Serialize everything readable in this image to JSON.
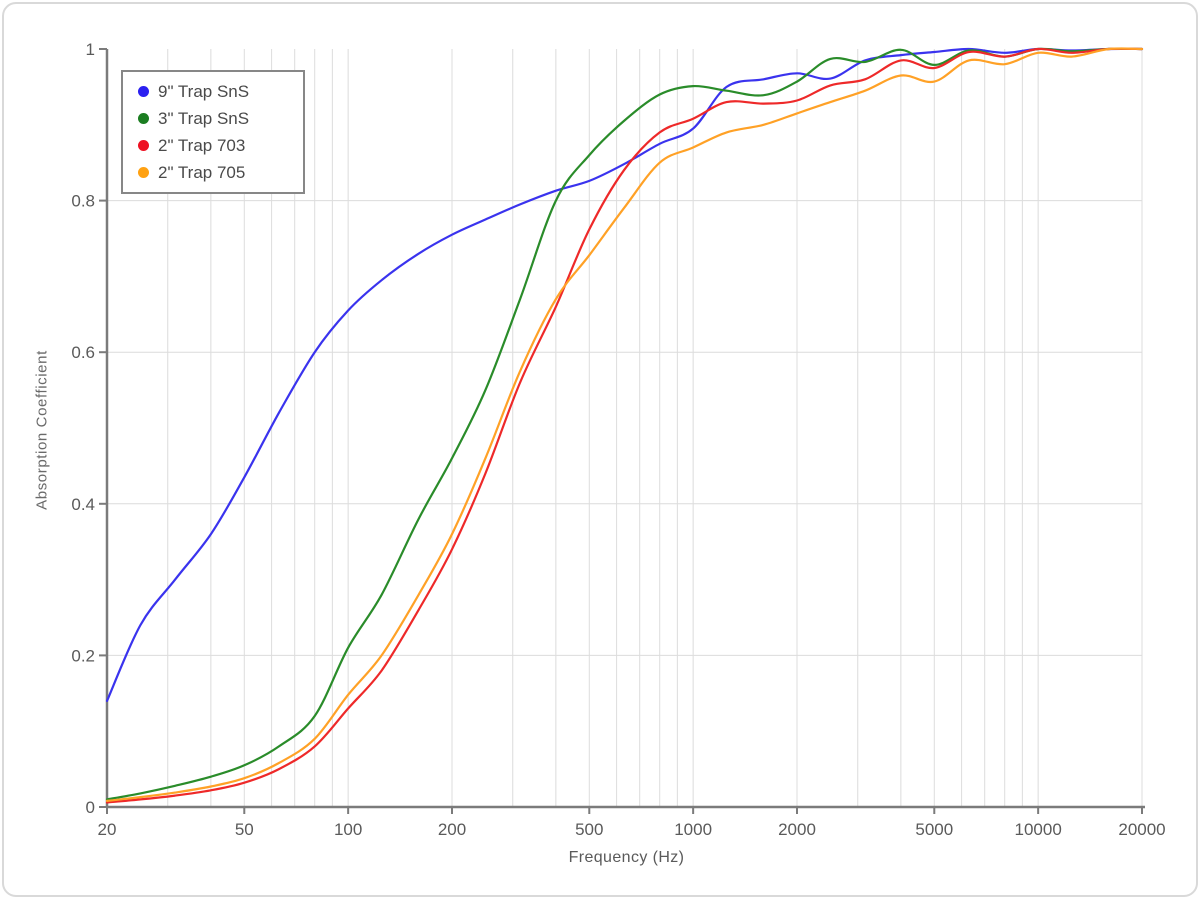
{
  "chart_data": {
    "type": "line",
    "title": "",
    "xlabel": "Frequency (Hz)",
    "ylabel": "Absorption Coefficient",
    "x_scale": "log",
    "xlim": [
      20,
      20000
    ],
    "ylim": [
      0,
      1
    ],
    "grid": true,
    "legend_position": "top-left",
    "x": [
      20,
      25,
      31.5,
      40,
      50,
      63,
      80,
      100,
      125,
      160,
      200,
      250,
      315,
      400,
      500,
      630,
      800,
      1000,
      1250,
      1600,
      2000,
      2500,
      3150,
      4000,
      5000,
      6300,
      8000,
      10000,
      12500,
      16000,
      20000
    ],
    "series": [
      {
        "name": "9\" Trap SnS",
        "color": "#3a33ee",
        "values": [
          0.14,
          0.24,
          0.3,
          0.36,
          0.435,
          0.52,
          0.6,
          0.655,
          0.695,
          0.73,
          0.755,
          0.775,
          0.795,
          0.813,
          0.826,
          0.848,
          0.875,
          0.895,
          0.95,
          0.96,
          0.968,
          0.961,
          0.985,
          0.992,
          0.996,
          1.0,
          0.995,
          1.0,
          0.998,
          1.0,
          1.0
        ]
      },
      {
        "name": "3\" Trap SnS",
        "color": "#2a8c2a",
        "values": [
          0.01,
          0.018,
          0.028,
          0.04,
          0.055,
          0.08,
          0.12,
          0.21,
          0.28,
          0.38,
          0.46,
          0.55,
          0.67,
          0.8,
          0.86,
          0.905,
          0.94,
          0.951,
          0.945,
          0.939,
          0.957,
          0.987,
          0.983,
          0.999,
          0.979,
          0.998,
          0.99,
          1.0,
          0.997,
          1.0,
          1.0
        ]
      },
      {
        "name": "2\" Trap 703",
        "color": "#ee2929",
        "values": [
          0.006,
          0.01,
          0.015,
          0.022,
          0.032,
          0.05,
          0.08,
          0.13,
          0.18,
          0.26,
          0.34,
          0.44,
          0.56,
          0.66,
          0.762,
          0.84,
          0.89,
          0.908,
          0.93,
          0.928,
          0.932,
          0.952,
          0.96,
          0.985,
          0.975,
          0.996,
          0.99,
          1.0,
          0.995,
          1.0,
          1.0
        ]
      },
      {
        "name": "2\" Trap 705",
        "color": "#ffa126",
        "values": [
          0.008,
          0.013,
          0.019,
          0.027,
          0.038,
          0.058,
          0.09,
          0.148,
          0.2,
          0.28,
          0.36,
          0.46,
          0.575,
          0.67,
          0.728,
          0.79,
          0.85,
          0.87,
          0.89,
          0.9,
          0.915,
          0.93,
          0.945,
          0.965,
          0.957,
          0.985,
          0.98,
          0.995,
          0.99,
          1.0,
          1.0
        ]
      }
    ]
  },
  "axes": {
    "x": {
      "label": "Frequency (Hz)",
      "ticks": [
        20,
        50,
        100,
        200,
        500,
        1000,
        2000,
        5000,
        10000,
        20000
      ],
      "tick_labels": [
        "20",
        "50",
        "100",
        "200",
        "500",
        "1000",
        "2000",
        "5000",
        "10000",
        "20000"
      ]
    },
    "y": {
      "label": "Absorption Coefficient",
      "ticks": [
        0,
        0.2,
        0.4,
        0.6,
        0.8,
        1
      ],
      "tick_labels": [
        "0",
        "0.2",
        "0.4",
        "0.6",
        "0.8",
        "1"
      ]
    }
  },
  "legend": {
    "items": [
      {
        "label": "9\" Trap SnS",
        "color": "#2b20f0"
      },
      {
        "label": "3\" Trap SnS",
        "color": "#1b7d21"
      },
      {
        "label": "2\" Trap 703",
        "color": "#ee1122"
      },
      {
        "label": "2\" Trap 705",
        "color": "#ffa112"
      }
    ]
  },
  "style": {
    "grid_color": "#dcdcdc",
    "axis_color": "#7b7b7b",
    "tick_text_color": "#5a5a5a"
  }
}
